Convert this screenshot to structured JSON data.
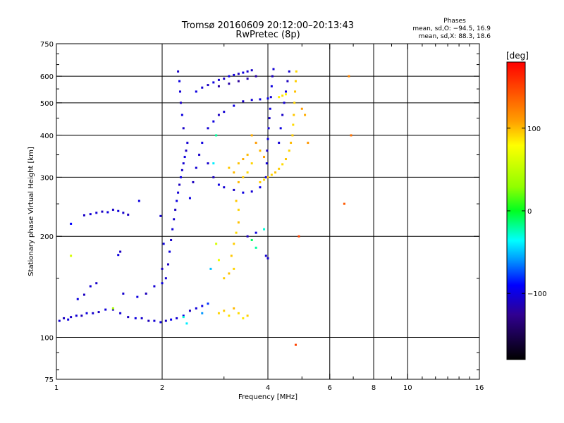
{
  "chart_data": {
    "type": "scatter",
    "title": "Tromsø 20160609 20:12:00–20:13:43",
    "subtitle": "RwPretec (8p)",
    "xlabel": "Frequency [MHz]",
    "ylabel": "Stationary phase Virtual Height [km]",
    "x_scale": "log",
    "y_scale": "log",
    "xlim": [
      1,
      16
    ],
    "ylim": [
      75,
      750
    ],
    "x_ticks": [
      1,
      2,
      4,
      6,
      8,
      10,
      16
    ],
    "y_ticks": [
      75,
      100,
      200,
      300,
      400,
      500,
      600,
      750
    ],
    "x_gridlines": [
      2,
      4,
      6,
      8,
      10
    ],
    "y_gridlines": [
      100,
      200,
      300,
      400,
      500,
      600
    ],
    "phase_stats": {
      "title": "Phases",
      "line_o": "mean, sd,O: −94.5, 16.9",
      "line_x": "mean, sd,X:  88.3, 18.6"
    },
    "colorbar": {
      "label": "[deg]",
      "range": [
        -180,
        180
      ],
      "ticks": [
        "100",
        "0",
        "−100"
      ],
      "tick_values": [
        100,
        0,
        -100
      ]
    },
    "series": [
      {
        "points": [
          [
            1.02,
            112,
            -105
          ],
          [
            1.05,
            114,
            -110
          ],
          [
            1.08,
            113,
            -100
          ],
          [
            1.1,
            115,
            -108
          ],
          [
            1.14,
            116,
            -103
          ],
          [
            1.18,
            116,
            -112
          ],
          [
            1.22,
            118,
            -100
          ],
          [
            1.27,
            118,
            -106
          ],
          [
            1.32,
            119,
            -110
          ],
          [
            1.38,
            121,
            -102
          ],
          [
            1.45,
            121,
            -108
          ],
          [
            1.52,
            118,
            -104
          ],
          [
            1.6,
            115,
            -110
          ],
          [
            1.68,
            114,
            -100
          ],
          [
            1.75,
            114,
            -106
          ],
          [
            1.83,
            112,
            -112
          ],
          [
            1.9,
            112,
            -104
          ],
          [
            1.98,
            111,
            -100
          ],
          [
            2.05,
            112,
            -108
          ],
          [
            2.12,
            113,
            -96
          ],
          [
            2.2,
            114,
            -104
          ],
          [
            2.3,
            116,
            -100
          ],
          [
            2.4,
            120,
            -110
          ],
          [
            2.5,
            122,
            -102
          ],
          [
            2.6,
            124,
            -98
          ],
          [
            1.15,
            130,
            -100
          ],
          [
            1.2,
            134,
            -110
          ],
          [
            1.25,
            142,
            -104
          ],
          [
            1.3,
            145,
            -108
          ],
          [
            1.55,
            135,
            -106
          ],
          [
            1.7,
            132,
            -100
          ],
          [
            1.8,
            135,
            -112
          ],
          [
            1.9,
            142,
            -104
          ],
          [
            2.0,
            145,
            -100
          ],
          [
            1.5,
            176,
            -100
          ],
          [
            1.52,
            180,
            -110
          ],
          [
            1.3,
            235,
            -104
          ],
          [
            1.35,
            237,
            -110
          ],
          [
            1.4,
            236,
            -100
          ],
          [
            1.45,
            240,
            -108
          ],
          [
            1.5,
            238,
            -102
          ],
          [
            1.55,
            235,
            -106
          ],
          [
            1.6,
            232,
            -110
          ],
          [
            1.25,
            233,
            -104
          ],
          [
            1.2,
            231,
            -108
          ],
          [
            1.72,
            255,
            -100
          ],
          [
            1.1,
            218,
            -90
          ],
          [
            2.05,
            150,
            -104
          ],
          [
            2.08,
            165,
            -110
          ],
          [
            2.1,
            180,
            -100
          ],
          [
            2.12,
            195,
            -108
          ],
          [
            2.14,
            210,
            -102
          ],
          [
            2.16,
            225,
            -106
          ],
          [
            2.18,
            240,
            -110
          ],
          [
            2.2,
            255,
            -100
          ],
          [
            2.22,
            270,
            -104
          ],
          [
            2.24,
            285,
            -110
          ],
          [
            2.26,
            300,
            -100
          ],
          [
            2.28,
            315,
            -108
          ],
          [
            2.3,
            330,
            -104
          ],
          [
            2.32,
            345,
            -100
          ],
          [
            2.34,
            360,
            -110
          ],
          [
            2.36,
            380,
            -104
          ],
          [
            2.3,
            420,
            -108
          ],
          [
            2.28,
            460,
            -100
          ],
          [
            2.26,
            500,
            -110
          ],
          [
            2.25,
            540,
            -104
          ],
          [
            2.24,
            580,
            -100
          ],
          [
            2.22,
            620,
            -108
          ],
          [
            2.0,
            160,
            -110
          ],
          [
            2.02,
            190,
            -100
          ],
          [
            1.98,
            230,
            -104
          ],
          [
            2.4,
            260,
            -100
          ],
          [
            2.45,
            290,
            -110
          ],
          [
            2.5,
            320,
            -104
          ],
          [
            2.55,
            350,
            -108
          ],
          [
            2.6,
            380,
            -100
          ],
          [
            2.7,
            330,
            -106
          ],
          [
            2.8,
            300,
            -110
          ],
          [
            2.9,
            285,
            -100
          ],
          [
            3.0,
            280,
            -104
          ],
          [
            3.2,
            275,
            -108
          ],
          [
            3.4,
            270,
            -100
          ],
          [
            3.6,
            272,
            -104
          ],
          [
            3.8,
            280,
            -96
          ],
          [
            2.7,
            420,
            -104
          ],
          [
            2.8,
            440,
            -100
          ],
          [
            2.9,
            460,
            -110
          ],
          [
            3.0,
            470,
            -104
          ],
          [
            3.2,
            490,
            -100
          ],
          [
            3.4,
            505,
            -108
          ],
          [
            3.6,
            510,
            -104
          ],
          [
            3.8,
            512,
            -100
          ],
          [
            4.0,
            515,
            -96
          ],
          [
            2.5,
            540,
            -100
          ],
          [
            2.6,
            555,
            -104
          ],
          [
            2.7,
            565,
            -110
          ],
          [
            2.8,
            575,
            -100
          ],
          [
            2.9,
            585,
            -104
          ],
          [
            3.0,
            590,
            -108
          ],
          [
            3.1,
            600,
            -100
          ],
          [
            3.2,
            605,
            -104
          ],
          [
            3.3,
            610,
            -110
          ],
          [
            3.4,
            615,
            -100
          ],
          [
            3.5,
            620,
            -104
          ],
          [
            3.6,
            625,
            -108
          ],
          [
            2.9,
            560,
            -120
          ],
          [
            3.1,
            570,
            -118
          ],
          [
            3.3,
            580,
            -122
          ],
          [
            3.5,
            590,
            -116
          ],
          [
            3.7,
            600,
            -120
          ],
          [
            3.95,
            300,
            -100
          ],
          [
            3.97,
            330,
            -104
          ],
          [
            3.98,
            360,
            -110
          ],
          [
            4.0,
            390,
            -100
          ],
          [
            4.02,
            420,
            -104
          ],
          [
            4.04,
            450,
            -108
          ],
          [
            4.06,
            480,
            -100
          ],
          [
            4.08,
            520,
            -104
          ],
          [
            4.1,
            560,
            -100
          ],
          [
            4.12,
            600,
            -110
          ],
          [
            4.15,
            630,
            -104
          ],
          [
            4.3,
            380,
            -104
          ],
          [
            4.35,
            420,
            -100
          ],
          [
            4.4,
            460,
            -108
          ],
          [
            4.45,
            500,
            -104
          ],
          [
            4.5,
            540,
            -100
          ],
          [
            4.55,
            580,
            -110
          ],
          [
            4.6,
            620,
            -104
          ],
          [
            3.5,
            200,
            -110
          ],
          [
            3.7,
            205,
            -100
          ],
          [
            3.95,
            175,
            -104
          ],
          [
            4.0,
            172,
            -108
          ],
          [
            2.3,
            115,
            -30
          ],
          [
            2.35,
            110,
            -40
          ],
          [
            2.6,
            118,
            -60
          ],
          [
            2.7,
            126,
            -80
          ],
          [
            2.75,
            160,
            -50
          ],
          [
            2.8,
            330,
            -40
          ],
          [
            2.85,
            400,
            -20
          ],
          [
            3.6,
            195,
            -10
          ],
          [
            3.7,
            185,
            -20
          ],
          [
            3.9,
            210,
            -30
          ]
        ]
      },
      {
        "points": [
          [
            2.9,
            118,
            92
          ],
          [
            3.0,
            120,
            95
          ],
          [
            3.1,
            116,
            88
          ],
          [
            3.2,
            122,
            100
          ],
          [
            3.3,
            118,
            90
          ],
          [
            3.4,
            114,
            86
          ],
          [
            3.5,
            116,
            94
          ],
          [
            3.0,
            150,
            95
          ],
          [
            3.1,
            155,
            98
          ],
          [
            3.2,
            160,
            92
          ],
          [
            3.15,
            175,
            96
          ],
          [
            3.2,
            190,
            94
          ],
          [
            3.25,
            205,
            90
          ],
          [
            3.3,
            220,
            98
          ],
          [
            3.3,
            240,
            92
          ],
          [
            3.25,
            255,
            96
          ],
          [
            3.3,
            290,
            100
          ],
          [
            3.4,
            300,
            94
          ],
          [
            3.5,
            310,
            90
          ],
          [
            3.3,
            330,
            98
          ],
          [
            3.6,
            330,
            92
          ],
          [
            3.8,
            290,
            94
          ],
          [
            3.9,
            295,
            90
          ],
          [
            4.0,
            300,
            96
          ],
          [
            4.1,
            305,
            92
          ],
          [
            4.2,
            310,
            98
          ],
          [
            4.3,
            318,
            94
          ],
          [
            4.4,
            328,
            90
          ],
          [
            4.5,
            340,
            96
          ],
          [
            4.6,
            360,
            92
          ],
          [
            4.65,
            380,
            100
          ],
          [
            4.7,
            400,
            94
          ],
          [
            4.72,
            430,
            90
          ],
          [
            4.74,
            460,
            96
          ],
          [
            4.76,
            500,
            92
          ],
          [
            4.78,
            540,
            98
          ],
          [
            4.8,
            580,
            94
          ],
          [
            4.82,
            620,
            90
          ],
          [
            4.3,
            520,
            84
          ],
          [
            4.4,
            525,
            88
          ],
          [
            4.5,
            530,
            82
          ],
          [
            3.6,
            400,
            104
          ],
          [
            3.7,
            380,
            110
          ],
          [
            3.8,
            360,
            100
          ],
          [
            3.9,
            345,
            108
          ],
          [
            3.5,
            350,
            100
          ],
          [
            3.4,
            340,
            104
          ],
          [
            3.1,
            320,
            96
          ],
          [
            3.2,
            310,
            100
          ],
          [
            5.0,
            480,
            110
          ],
          [
            5.1,
            460,
            104
          ],
          [
            5.2,
            380,
            112
          ],
          [
            6.8,
            600,
            120
          ],
          [
            6.9,
            400,
            130
          ],
          [
            6.6,
            250,
            140
          ],
          [
            4.9,
            200,
            150
          ],
          [
            2.85,
            190,
            60
          ],
          [
            2.9,
            170,
            70
          ],
          [
            4.8,
            95,
            150
          ],
          [
            1.45,
            122,
            40
          ],
          [
            1.1,
            175,
            60
          ]
        ]
      }
    ]
  }
}
